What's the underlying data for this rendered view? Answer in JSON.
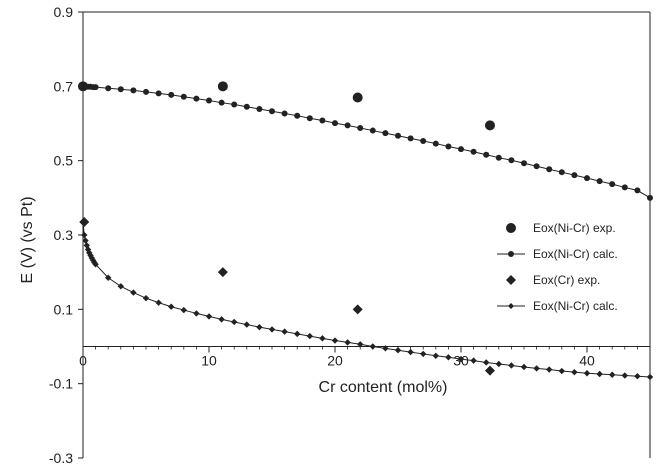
{
  "chart_data": {
    "type": "scatter",
    "title": "",
    "xlabel": "Cr content (mol%)",
    "ylabel": "E (V) (vs Pt)",
    "xlim": [
      0,
      45
    ],
    "ylim": [
      -0.3,
      0.9
    ],
    "x_ticks": [
      0,
      10,
      20,
      30,
      40
    ],
    "y_ticks": [
      -0.3,
      -0.1,
      0.1,
      0.3,
      0.5,
      0.7,
      0.9
    ],
    "x_tick_labels": [
      "0",
      "10",
      "20",
      "30",
      "40"
    ],
    "y_tick_labels": [
      "-0.3",
      "-0.1",
      "0.1",
      "0.3",
      "0.5",
      "0.7",
      "0.9"
    ],
    "grid": false,
    "legend_position": "right",
    "series": [
      {
        "name": "Eox(Ni-Cr) exp.",
        "kind": "scatter",
        "marker": "circle",
        "color": "#222222",
        "points": [
          [
            0,
            0.7
          ],
          [
            11.1,
            0.7
          ],
          [
            21.8,
            0.67
          ],
          [
            32.3,
            0.595
          ]
        ]
      },
      {
        "name": "Eox(Ni-Cr) calc.",
        "kind": "line",
        "marker": "circle",
        "color": "#222222",
        "x": [
          0,
          0.2,
          0.4,
          0.6,
          0.8,
          1,
          2,
          3,
          4,
          5,
          6,
          7,
          8,
          9,
          10,
          11,
          12,
          13,
          14,
          15,
          16,
          17,
          18,
          19,
          20,
          21,
          22,
          23,
          24,
          25,
          26,
          27,
          28,
          29,
          30,
          31,
          32,
          33,
          34,
          35,
          36,
          37,
          38,
          39,
          40,
          41,
          42,
          43,
          44,
          45
        ],
        "y": [
          0.7,
          0.7,
          0.699,
          0.699,
          0.698,
          0.698,
          0.695,
          0.692,
          0.689,
          0.685,
          0.681,
          0.677,
          0.672,
          0.667,
          0.662,
          0.656,
          0.651,
          0.645,
          0.639,
          0.633,
          0.627,
          0.621,
          0.614,
          0.608,
          0.601,
          0.595,
          0.588,
          0.581,
          0.574,
          0.567,
          0.56,
          0.553,
          0.546,
          0.538,
          0.531,
          0.524,
          0.516,
          0.508,
          0.501,
          0.493,
          0.485,
          0.477,
          0.469,
          0.461,
          0.453,
          0.445,
          0.437,
          0.428,
          0.42,
          0.4
        ]
      },
      {
        "name": "Eox(Cr) exp.",
        "kind": "scatter",
        "marker": "diamond",
        "color": "#222222",
        "points": [
          [
            0.1,
            0.335
          ],
          [
            11.1,
            0.2
          ],
          [
            21.8,
            0.1
          ],
          [
            32.3,
            -0.065
          ]
        ]
      },
      {
        "name": "Eox(Ni-Cr) calc.",
        "kind": "line",
        "marker": "diamond",
        "color": "#222222",
        "x": [
          0,
          0.1,
          0.2,
          0.3,
          0.4,
          0.5,
          0.6,
          0.7,
          0.8,
          0.9,
          1,
          2,
          3,
          4,
          5,
          6,
          7,
          8,
          9,
          10,
          11,
          12,
          13,
          14,
          15,
          16,
          17,
          18,
          19,
          20,
          21,
          22,
          23,
          24,
          25,
          26,
          27,
          28,
          29,
          30,
          31,
          32,
          33,
          34,
          35,
          36,
          37,
          38,
          39,
          40,
          41,
          42,
          43,
          44,
          45
        ],
        "y": [
          0.335,
          0.3,
          0.285,
          0.272,
          0.261,
          0.252,
          0.245,
          0.238,
          0.232,
          0.226,
          0.221,
          0.185,
          0.162,
          0.145,
          0.13,
          0.118,
          0.107,
          0.098,
          0.089,
          0.081,
          0.073,
          0.066,
          0.059,
          0.052,
          0.046,
          0.04,
          0.034,
          0.028,
          0.022,
          0.016,
          0.011,
          0.006,
          0.0,
          -0.005,
          -0.01,
          -0.015,
          -0.02,
          -0.025,
          -0.029,
          -0.034,
          -0.038,
          -0.043,
          -0.047,
          -0.051,
          -0.055,
          -0.059,
          -0.062,
          -0.066,
          -0.069,
          -0.072,
          -0.074,
          -0.076,
          -0.078,
          -0.08,
          -0.082
        ]
      }
    ]
  }
}
